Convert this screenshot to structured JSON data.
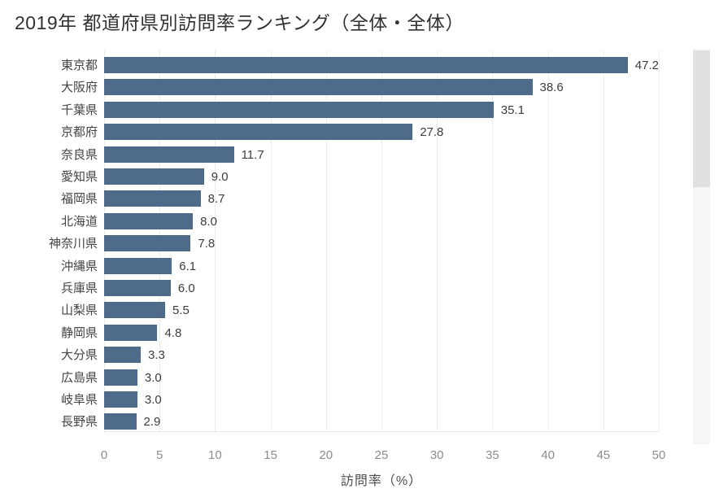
{
  "title": "2019年 都道府県別訪問率ランキング（全体・全体）",
  "chart_data": {
    "type": "bar",
    "orientation": "horizontal",
    "title": "2019年 都道府県別訪問率ランキング（全体・全体）",
    "categories": [
      "東京都",
      "大阪府",
      "千葉県",
      "京都府",
      "奈良県",
      "愛知県",
      "福岡県",
      "北海道",
      "神奈川県",
      "沖縄県",
      "兵庫県",
      "山梨県",
      "静岡県",
      "大分県",
      "広島県",
      "岐阜県",
      "長野県"
    ],
    "values": [
      47.2,
      38.6,
      35.1,
      27.8,
      11.7,
      9.0,
      8.7,
      8.0,
      7.8,
      6.1,
      6.0,
      5.5,
      4.8,
      3.3,
      3.0,
      3.0,
      2.9
    ],
    "value_decimals": 1,
    "xlabel": "訪問率（%）",
    "ylabel": "",
    "xticks": [
      0,
      5,
      10,
      15,
      20,
      25,
      30,
      35,
      40,
      45,
      50
    ],
    "xlim": [
      0,
      50
    ],
    "grid": true,
    "legend": "none"
  },
  "colors": {
    "bar": "#4e6c8a",
    "grid": "#ececec",
    "axis_line": "#e4e4e4",
    "category_label": "#444444",
    "value_label": "#3d3d3d",
    "tick_label": "#8c8c8c",
    "axis_title": "#4d4d4d",
    "title": "#323232",
    "scrollbar_track": "#f6f6f6",
    "scrollbar_thumb": "#e0e0e0",
    "background": "#ffffff"
  }
}
